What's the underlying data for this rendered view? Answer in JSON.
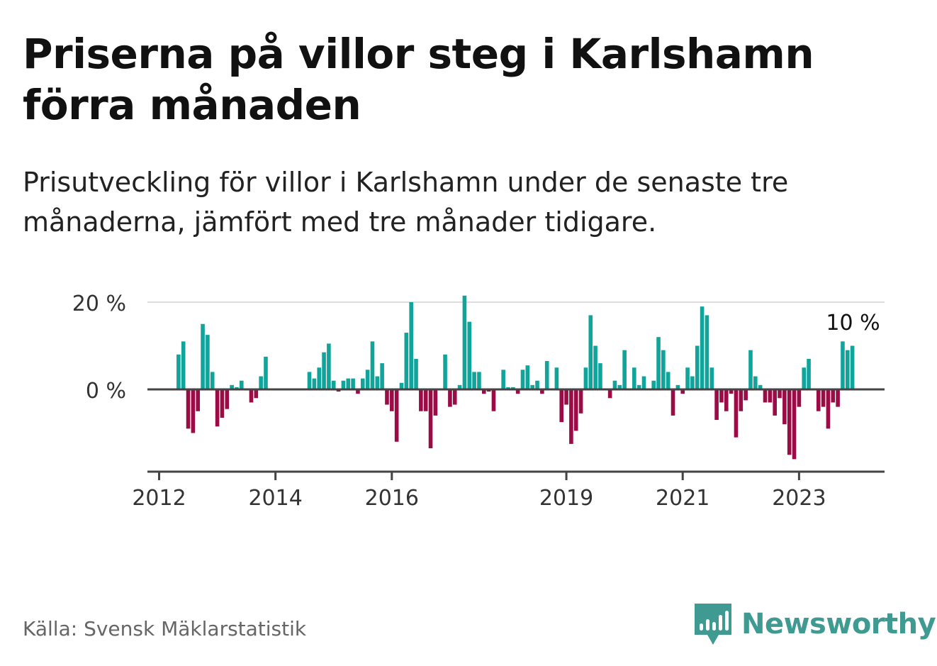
{
  "header": {
    "title": "Priserna på villor steg i Karlshamn förra månaden",
    "subtitle": "Prisutveckling för villor i Karlshamn under de senaste tre månaderna, jämfört med tre månader tidigare."
  },
  "footer": {
    "source": "Källa: Svensk Mäklarstatistik",
    "brand": "Newsworthy",
    "brand_icon": "bar-chart-speech-bubble-icon"
  },
  "colors": {
    "positive": "#11a49b",
    "negative": "#9b0c46",
    "brand": "#3f9a92"
  },
  "chart_data": {
    "type": "bar",
    "x_unit": "month",
    "start": "2012-05",
    "values": [
      8,
      11,
      -9,
      -10,
      -5,
      15,
      12.5,
      4,
      -8.5,
      -6.5,
      -4.5,
      1,
      0.5,
      2,
      0,
      -3,
      -2,
      3,
      7.5,
      0,
      0,
      0,
      0,
      0,
      0,
      0,
      0,
      4,
      2.5,
      5,
      8.5,
      10.5,
      2,
      -0.5,
      2,
      2.5,
      2.5,
      -1,
      2.5,
      4.5,
      11,
      3,
      6,
      -3.5,
      -5,
      -12,
      1.5,
      13,
      20,
      7,
      -5,
      -5,
      -13.5,
      -6,
      0,
      8,
      -4,
      -3.5,
      1,
      21.5,
      15.5,
      4,
      4,
      -1,
      -0.5,
      -5,
      0,
      4.5,
      0.5,
      0.5,
      -1,
      4.5,
      5.5,
      1,
      2,
      -1,
      6.5,
      0,
      5,
      -7.5,
      -3.5,
      -12.5,
      -9.5,
      -5.5,
      5,
      17,
      10,
      6,
      0,
      -2,
      2,
      1,
      9,
      0,
      5,
      1,
      3,
      0,
      2,
      12,
      9,
      4,
      -6,
      1,
      -1,
      5,
      3,
      10,
      19,
      17,
      5,
      -7,
      -3,
      -5,
      -1,
      -11,
      -5,
      -2.5,
      9,
      3,
      1,
      -3,
      -3,
      -6,
      -2,
      -8,
      -15,
      -16,
      -4,
      5,
      7,
      0,
      -5,
      -4,
      -9,
      -3,
      -4,
      11,
      9,
      10
    ],
    "ylim": [
      -18,
      20
    ],
    "yticks": [
      0,
      20
    ],
    "ytick_labels": [
      "0 %",
      "20 %"
    ],
    "xticks": [
      "2012",
      "2014",
      "2016",
      "2019",
      "2021",
      "2023"
    ],
    "last_value_label": "10 %",
    "grid": true,
    "legend": "none"
  }
}
